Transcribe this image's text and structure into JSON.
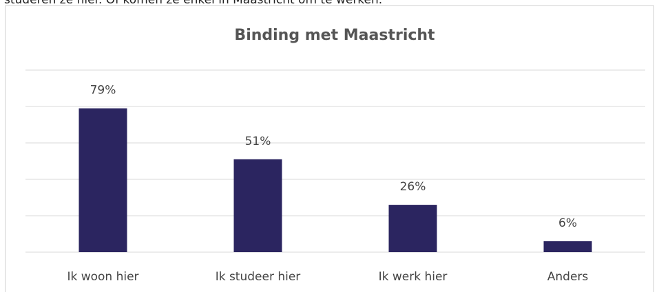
{
  "caption": "studeren ze hier. Of komen ze enkel in Maastricht om te werken.",
  "chart_data": {
    "type": "bar",
    "title": "Binding met Maastricht",
    "categories": [
      "Ik woon hier",
      "Ik studeer hier",
      "Ik werk hier",
      "Anders"
    ],
    "values": [
      79,
      51,
      26,
      6
    ],
    "value_labels": [
      "79%",
      "51%",
      "26%",
      "6%"
    ],
    "color": "#2b2560",
    "ylim": [
      0,
      100
    ],
    "yticks": [
      0,
      20,
      40,
      60,
      80,
      100
    ],
    "grid": true
  }
}
